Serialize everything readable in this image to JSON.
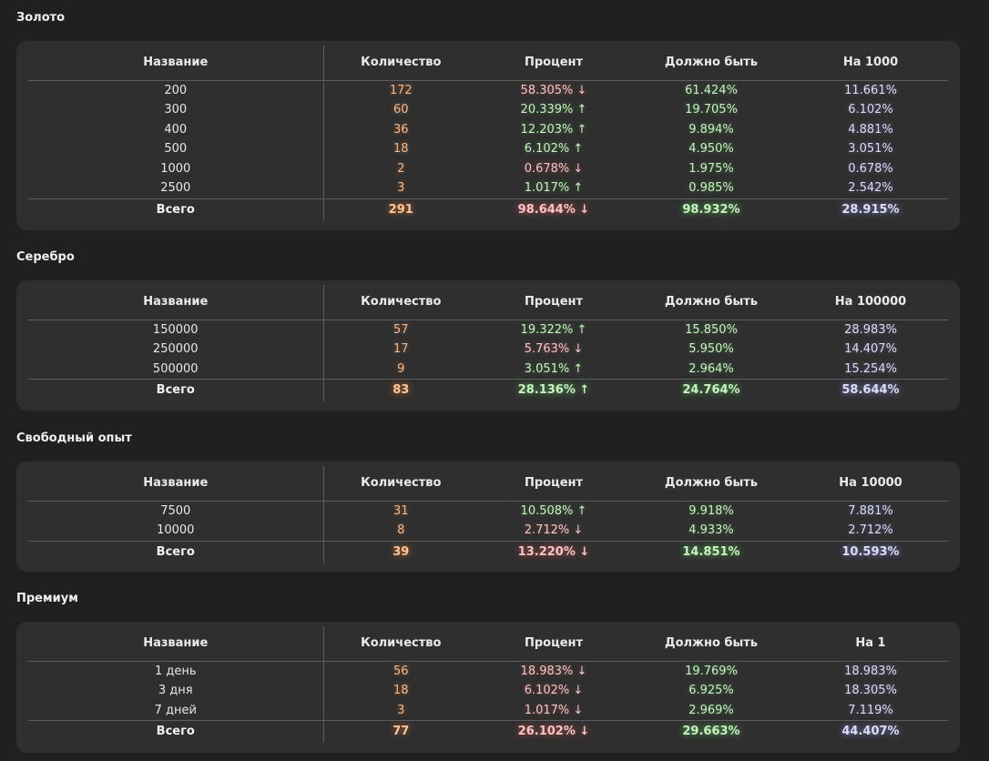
{
  "headers": {
    "name": "Название",
    "count": "Количество",
    "percent": "Процент",
    "should": "Должно быть"
  },
  "arrows": {
    "up": "↑",
    "down": "↓"
  },
  "sections": [
    {
      "title": "Золото",
      "per_header": "На 1000",
      "rows": [
        {
          "name": "200",
          "count": "172",
          "percent": "58.305%",
          "dir": "down",
          "should": "61.424%",
          "per": "11.661%"
        },
        {
          "name": "300",
          "count": "60",
          "percent": "20.339%",
          "dir": "up",
          "should": "19.705%",
          "per": "6.102%"
        },
        {
          "name": "400",
          "count": "36",
          "percent": "12.203%",
          "dir": "up",
          "should": "9.894%",
          "per": "4.881%"
        },
        {
          "name": "500",
          "count": "18",
          "percent": "6.102%",
          "dir": "up",
          "should": "4.950%",
          "per": "3.051%"
        },
        {
          "name": "1000",
          "count": "2",
          "percent": "0.678%",
          "dir": "down",
          "should": "1.975%",
          "per": "0.678%"
        },
        {
          "name": "2500",
          "count": "3",
          "percent": "1.017%",
          "dir": "up",
          "should": "0.985%",
          "per": "2.542%"
        }
      ],
      "total": {
        "name": "Всего",
        "count": "291",
        "percent": "98.644%",
        "dir": "down",
        "should": "98.932%",
        "per": "28.915%"
      }
    },
    {
      "title": "Серебро",
      "per_header": "На 100000",
      "rows": [
        {
          "name": "150000",
          "count": "57",
          "percent": "19.322%",
          "dir": "up",
          "should": "15.850%",
          "per": "28.983%"
        },
        {
          "name": "250000",
          "count": "17",
          "percent": "5.763%",
          "dir": "down",
          "should": "5.950%",
          "per": "14.407%"
        },
        {
          "name": "500000",
          "count": "9",
          "percent": "3.051%",
          "dir": "up",
          "should": "2.964%",
          "per": "15.254%"
        }
      ],
      "total": {
        "name": "Всего",
        "count": "83",
        "percent": "28.136%",
        "dir": "up",
        "should": "24.764%",
        "per": "58.644%"
      }
    },
    {
      "title": "Свободный опыт",
      "per_header": "На 10000",
      "rows": [
        {
          "name": "7500",
          "count": "31",
          "percent": "10.508%",
          "dir": "up",
          "should": "9.918%",
          "per": "7.881%"
        },
        {
          "name": "10000",
          "count": "8",
          "percent": "2.712%",
          "dir": "down",
          "should": "4.933%",
          "per": "2.712%"
        }
      ],
      "total": {
        "name": "Всего",
        "count": "39",
        "percent": "13.220%",
        "dir": "down",
        "should": "14.851%",
        "per": "10.593%"
      }
    },
    {
      "title": "Премиум",
      "per_header": "На 1",
      "rows": [
        {
          "name": "1 день",
          "count": "56",
          "percent": "18.983%",
          "dir": "down",
          "should": "19.769%",
          "per": "18.983%"
        },
        {
          "name": "3 дня",
          "count": "18",
          "percent": "6.102%",
          "dir": "down",
          "should": "6.925%",
          "per": "18.305%"
        },
        {
          "name": "7 дней",
          "count": "3",
          "percent": "1.017%",
          "dir": "down",
          "should": "2.969%",
          "per": "7.119%"
        }
      ],
      "total": {
        "name": "Всего",
        "count": "77",
        "percent": "26.102%",
        "dir": "down",
        "should": "29.663%",
        "per": "44.407%"
      }
    }
  ]
}
